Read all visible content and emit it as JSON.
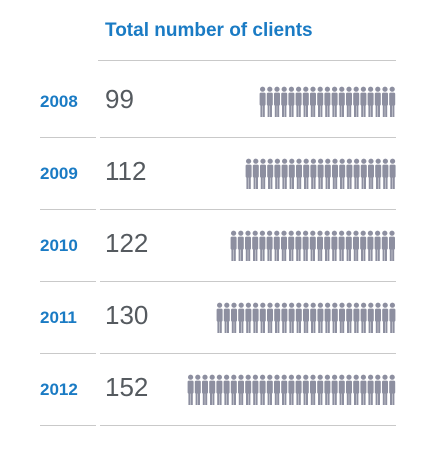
{
  "colors": {
    "accent": "#1a7bc4",
    "value_text": "#555a5f",
    "icon": "#8d8fa0",
    "rule": "#c9c9c9"
  },
  "icon": "person-icon",
  "chart_data": {
    "type": "bar",
    "title": "Total number of clients",
    "categories": [
      "2008",
      "2009",
      "2010",
      "2011",
      "2012"
    ],
    "values": [
      99,
      112,
      122,
      130,
      152
    ],
    "encoding": "pictogram"
  }
}
